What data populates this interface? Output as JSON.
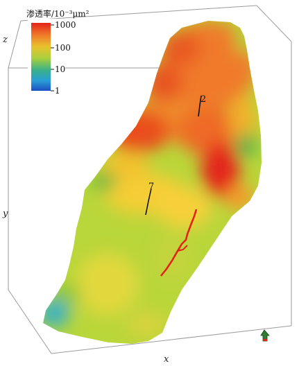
{
  "legend": {
    "title": "渗透率/10⁻³μm²",
    "ticks": [
      "1000",
      "100",
      "10",
      "1"
    ]
  },
  "axes": {
    "x": "x",
    "y": "y",
    "z": "z"
  },
  "well_labels": [
    "2",
    "7"
  ],
  "colors": {
    "high": "#e83a1c",
    "upper": "#f07a2a",
    "mid": "#f5c02a",
    "lower_mid": "#b9d63a",
    "low": "#34b3c8",
    "lowest": "#1f5fc8",
    "fracture": "#e02418",
    "arrow": "#3a8a3c"
  },
  "north_arrow_icon": "north-arrow-icon"
}
